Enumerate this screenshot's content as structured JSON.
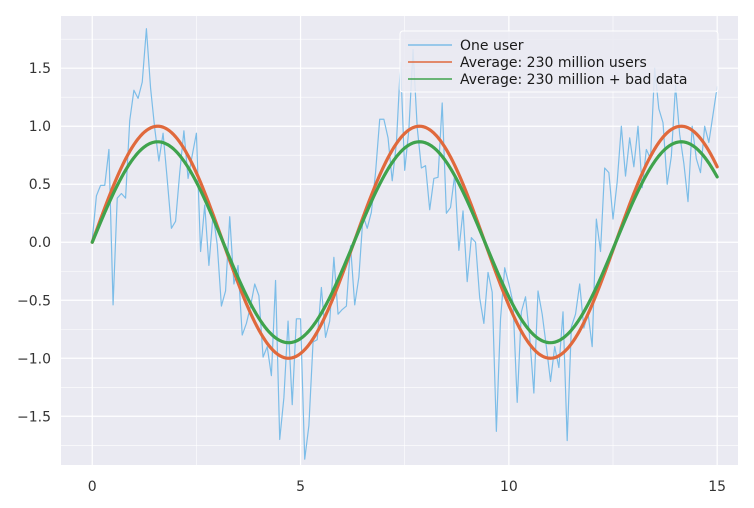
{
  "chart_data": {
    "type": "line",
    "title": "",
    "xlabel": "",
    "ylabel": "",
    "xlim": [
      -0.75,
      15.5
    ],
    "ylim": [
      -1.92,
      1.95
    ],
    "x_ticks": [
      0,
      5,
      10,
      15
    ],
    "x_tick_labels": [
      "0",
      "5",
      "10",
      "15"
    ],
    "y_ticks": [
      -1.5,
      -1.0,
      -0.5,
      0.0,
      0.5,
      1.0,
      1.5
    ],
    "y_tick_labels": [
      "−1.5",
      "−1.0",
      "−0.5",
      "0.0",
      "0.5",
      "1.0",
      "1.5"
    ],
    "grid": true,
    "legend_position": "upper-right",
    "series": [
      {
        "name": "One user",
        "color": "#7cbde8",
        "x": [
          0.0,
          0.1,
          0.2,
          0.3,
          0.4,
          0.5,
          0.6,
          0.7,
          0.8,
          0.9,
          1.0,
          1.1,
          1.2,
          1.3,
          1.4,
          1.5,
          1.6,
          1.7,
          1.8,
          1.9,
          2.0,
          2.1,
          2.2,
          2.3,
          2.4,
          2.5,
          2.6,
          2.7,
          2.8,
          2.9,
          3.0,
          3.1,
          3.2,
          3.3,
          3.4,
          3.5,
          3.6,
          3.7,
          3.8,
          3.9,
          4.0,
          4.1,
          4.2,
          4.3,
          4.4,
          4.5,
          4.6,
          4.7,
          4.8,
          4.9,
          5.0,
          5.1,
          5.2,
          5.3,
          5.4,
          5.5,
          5.6,
          5.7,
          5.8,
          5.9,
          6.0,
          6.1,
          6.2,
          6.3,
          6.4,
          6.5,
          6.6,
          6.7,
          6.8,
          6.9,
          7.0,
          7.1,
          7.2,
          7.3,
          7.4,
          7.5,
          7.6,
          7.7,
          7.8,
          7.9,
          8.0,
          8.1,
          8.2,
          8.3,
          8.4,
          8.5,
          8.6,
          8.7,
          8.8,
          8.9,
          9.0,
          9.1,
          9.2,
          9.3,
          9.4,
          9.5,
          9.6,
          9.7,
          9.8,
          9.9,
          10.0,
          10.1,
          10.2,
          10.3,
          10.4,
          10.5,
          10.6,
          10.7,
          10.8,
          10.9,
          11.0,
          11.1,
          11.2,
          11.3,
          11.4,
          11.5,
          11.6,
          11.7,
          11.8,
          11.9,
          12.0,
          12.1,
          12.2,
          12.3,
          12.4,
          12.5,
          12.6,
          12.7,
          12.8,
          12.9,
          13.0,
          13.1,
          13.2,
          13.3,
          13.4,
          13.5,
          13.6,
          13.7,
          13.8,
          13.9,
          14.0,
          14.1,
          14.2,
          14.3,
          14.4,
          14.5,
          14.6,
          14.7,
          14.8,
          14.9,
          15.0
        ],
        "values": [
          0.02,
          0.4,
          0.49,
          0.49,
          0.8,
          -0.54,
          0.38,
          0.42,
          0.38,
          1.05,
          1.31,
          1.24,
          1.38,
          1.84,
          1.33,
          0.98,
          0.7,
          0.94,
          0.54,
          0.12,
          0.18,
          0.6,
          0.96,
          0.55,
          0.75,
          0.94,
          -0.08,
          0.32,
          -0.2,
          0.24,
          -0.02,
          -0.55,
          -0.42,
          0.22,
          -0.36,
          -0.2,
          -0.8,
          -0.7,
          -0.55,
          -0.36,
          -0.46,
          -0.99,
          -0.9,
          -1.15,
          -0.33,
          -1.7,
          -1.34,
          -0.68,
          -1.4,
          -0.66,
          -0.66,
          -1.87,
          -1.58,
          -0.86,
          -0.84,
          -0.39,
          -0.82,
          -0.68,
          -0.13,
          -0.62,
          -0.58,
          -0.55,
          -0.03,
          -0.54,
          -0.3,
          0.23,
          0.12,
          0.26,
          0.6,
          1.06,
          1.06,
          0.9,
          0.53,
          0.85,
          1.55,
          0.62,
          0.97,
          1.66,
          0.99,
          0.64,
          0.66,
          0.28,
          0.55,
          0.56,
          1.2,
          0.25,
          0.3,
          0.58,
          -0.07,
          0.27,
          -0.34,
          0.04,
          0.0,
          -0.48,
          -0.7,
          -0.26,
          -0.43,
          -1.63,
          -0.66,
          -0.22,
          -0.36,
          -0.52,
          -1.38,
          -0.6,
          -0.47,
          -0.82,
          -1.3,
          -0.42,
          -0.62,
          -0.9,
          -1.2,
          -0.9,
          -1.08,
          -0.6,
          -1.71,
          -0.73,
          -0.62,
          -0.36,
          -0.74,
          -0.61,
          -0.9,
          0.2,
          -0.08,
          0.64,
          0.6,
          0.2,
          0.52,
          1.0,
          0.57,
          0.9,
          0.65,
          1.0,
          0.47,
          0.8,
          0.72,
          1.5,
          1.15,
          1.03,
          0.5,
          0.74,
          1.35,
          0.93,
          0.68,
          0.35,
          1.0,
          0.72,
          0.6,
          1.0,
          0.86,
          1.1,
          1.34
        ]
      },
      {
        "name": "Average: 230 million users",
        "color": "#e0693c",
        "function": "sin(x)",
        "amplitude": 1.0,
        "x_range": [
          0,
          15
        ]
      },
      {
        "name": "Average: 230 million + bad data",
        "color": "#3fa34d",
        "function": "0.866 * sin(x)",
        "amplitude": 0.866,
        "x_range": [
          0,
          15
        ]
      }
    ]
  }
}
